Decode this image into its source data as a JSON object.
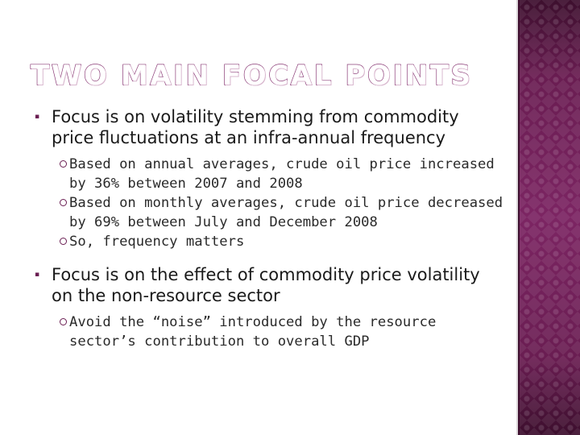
{
  "title": "TWO MAIN FOCAL POINTS",
  "points": [
    {
      "text": "Focus is on volatility stemming from commodity price fluctuations at an infra-annual frequency",
      "subpoints": [
        "Based on annual averages, crude oil price increased by 36% between 2007 and 2008",
        "Based on monthly averages, crude oil price decreased by 69% between July and December 2008",
        "So, frequency matters"
      ]
    },
    {
      "text": "Focus is on the effect of commodity price volatility on the non-resource sector",
      "subpoints": [
        "Avoid the “noise” introduced by the resource sector’s contribution to overall GDP"
      ]
    }
  ],
  "colors": {
    "accent": "#6a1d52",
    "title_outline": "#8a3a76",
    "text": "#1a1a1a"
  }
}
